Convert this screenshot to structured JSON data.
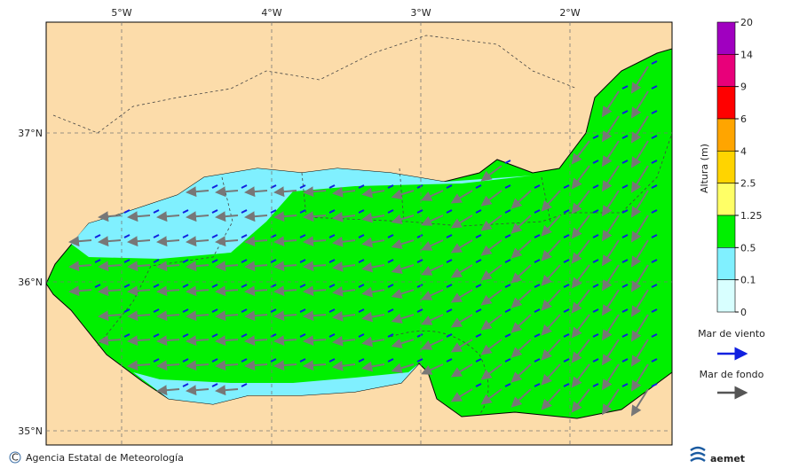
{
  "map": {
    "lon_labels": [
      "5°W",
      "4°W",
      "3°W",
      "2°W"
    ],
    "lat_labels": [
      "37°N",
      "36°N",
      "35°N"
    ],
    "colorbar": {
      "label": "Altura (m)",
      "ticks": [
        20,
        14,
        9,
        6,
        4,
        2.5,
        1.25,
        0.5,
        0.1,
        0
      ],
      "colors": [
        "#a000c0",
        "#e8007a",
        "#ff0000",
        "#ffa500",
        "#ffd400",
        "#ffff66",
        "#00f000",
        "#80f0ff",
        "#d8ffff"
      ]
    },
    "legend": {
      "wind_sea": "Mar de viento",
      "swell": "Mar de fondo"
    },
    "footer": {
      "credit": "Agencia Estatal de Meteorología",
      "logo": "aemet"
    }
  }
}
